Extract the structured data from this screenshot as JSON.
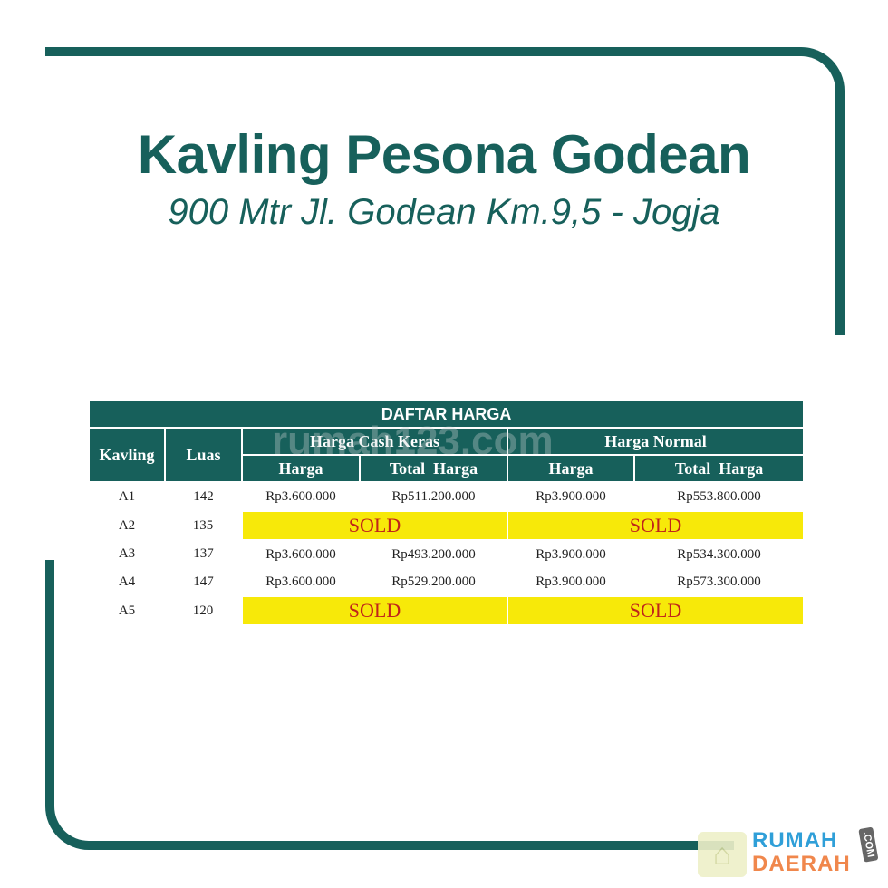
{
  "title": "Kavling Pesona Godean",
  "subtitle": "900 Mtr Jl. Godean Km.9,5 - Jogja",
  "colors": {
    "brand": "#17605b",
    "sold_bg": "#f7e909",
    "sold_text": "#c0241a"
  },
  "table": {
    "caption": "DAFTAR HARGA",
    "headers": {
      "kavling": "Kavling",
      "luas": "Luas",
      "group1": "Harga Cash Keras",
      "group2": "Harga Normal",
      "harga": "Harga",
      "total": "Total  Harga"
    },
    "rows": [
      {
        "kavling": "A1",
        "luas": "142",
        "cash_harga": "Rp3.600.000",
        "cash_total": "Rp511.200.000",
        "normal_harga": "Rp3.900.000",
        "normal_total": "Rp553.800.000"
      },
      {
        "kavling": "A2",
        "luas": "135",
        "sold": "SOLD"
      },
      {
        "kavling": "A3",
        "luas": "137",
        "cash_harga": "Rp3.600.000",
        "cash_total": "Rp493.200.000",
        "normal_harga": "Rp3.900.000",
        "normal_total": "Rp534.300.000"
      },
      {
        "kavling": "A4",
        "luas": "147",
        "cash_harga": "Rp3.600.000",
        "cash_total": "Rp529.200.000",
        "normal_harga": "Rp3.900.000",
        "normal_total": "Rp573.300.000"
      },
      {
        "kavling": "A5",
        "luas": "120",
        "sold": "SOLD"
      }
    ]
  },
  "watermark": "rumah123.com",
  "logo": {
    "line1": "RUMAH",
    "line2": "DAERAH",
    "tld": ".COM",
    "icon": "house-icon"
  }
}
